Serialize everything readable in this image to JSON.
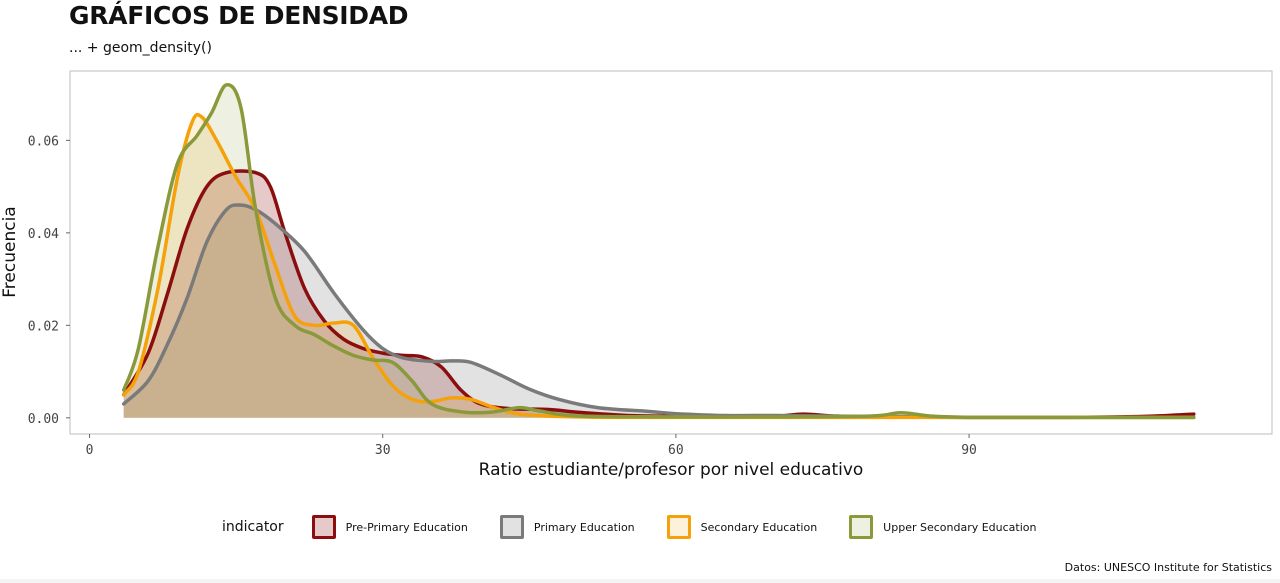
{
  "header": {
    "title": "GRÁFICOS DE DENSIDAD",
    "subtitle": "... + geom_density()"
  },
  "caption": "Datos: UNESCO Institute for Statistics",
  "legend": {
    "title": "indicator",
    "position": "bottom"
  },
  "chart_data": {
    "type": "area",
    "subtype": "density",
    "xlabel": "Ratio estudiante/profesor por nivel educativo",
    "ylabel": "Frecuencia",
    "xlim": [
      -2,
      121
    ],
    "ylim": [
      -0.0035,
      0.075
    ],
    "x_ticks": [
      0,
      30,
      60,
      90
    ],
    "x_tick_labels": [
      "0",
      "30",
      "60",
      "90"
    ],
    "y_ticks": [
      0.0,
      0.02,
      0.04,
      0.06
    ],
    "y_tick_labels": [
      "0.00",
      "0.02",
      "0.04",
      "0.06"
    ],
    "grid": false,
    "series": [
      {
        "name": "Pre-Primary Education",
        "color": "#8b0e0e",
        "fill_opacity": 0.22,
        "points": [
          [
            3.5,
            0.005
          ],
          [
            6,
            0.014
          ],
          [
            8,
            0.027
          ],
          [
            10,
            0.041
          ],
          [
            12,
            0.05
          ],
          [
            14,
            0.053
          ],
          [
            17,
            0.053
          ],
          [
            18.5,
            0.05
          ],
          [
            20,
            0.04
          ],
          [
            22,
            0.028
          ],
          [
            24,
            0.021
          ],
          [
            26,
            0.017
          ],
          [
            28,
            0.015
          ],
          [
            30,
            0.014
          ],
          [
            32,
            0.0135
          ],
          [
            34,
            0.0132
          ],
          [
            36,
            0.011
          ],
          [
            38,
            0.006
          ],
          [
            40,
            0.003
          ],
          [
            43,
            0.002
          ],
          [
            47,
            0.0018
          ],
          [
            50,
            0.0012
          ],
          [
            55,
            0.0005
          ],
          [
            60,
            0.0003
          ],
          [
            65,
            0.0002
          ],
          [
            70,
            0.0003
          ],
          [
            73,
            0.0008
          ],
          [
            76,
            0.0004
          ],
          [
            80,
            0.0002
          ],
          [
            90,
            0.0001
          ],
          [
            100,
            0.0001
          ],
          [
            108,
            0.0003
          ],
          [
            113,
            0.0008
          ]
        ]
      },
      {
        "name": "Primary Education",
        "color": "#7a7a7a",
        "fill_opacity": 0.22,
        "points": [
          [
            3.5,
            0.003
          ],
          [
            6,
            0.008
          ],
          [
            8,
            0.016
          ],
          [
            10,
            0.026
          ],
          [
            12,
            0.038
          ],
          [
            14,
            0.045
          ],
          [
            15.5,
            0.046
          ],
          [
            17,
            0.045
          ],
          [
            19,
            0.042
          ],
          [
            22,
            0.036
          ],
          [
            25,
            0.027
          ],
          [
            28,
            0.019
          ],
          [
            30,
            0.015
          ],
          [
            32,
            0.013
          ],
          [
            35,
            0.0122
          ],
          [
            37,
            0.0123
          ],
          [
            39,
            0.012
          ],
          [
            42,
            0.0093
          ],
          [
            45,
            0.0062
          ],
          [
            48,
            0.004
          ],
          [
            52,
            0.0022
          ],
          [
            57,
            0.0014
          ],
          [
            60,
            0.0009
          ],
          [
            65,
            0.0005
          ],
          [
            70,
            0.0005
          ],
          [
            75,
            0.0004
          ],
          [
            80,
            0.0003
          ],
          [
            85,
            0.0002
          ],
          [
            90,
            0.0001
          ],
          [
            100,
            0.0001
          ],
          [
            113,
            0.0001
          ]
        ]
      },
      {
        "name": "Secondary Education",
        "color": "#f5a10a",
        "fill_opacity": 0.15,
        "points": [
          [
            3.5,
            0.005
          ],
          [
            5,
            0.01
          ],
          [
            7,
            0.028
          ],
          [
            9,
            0.052
          ],
          [
            10.5,
            0.064
          ],
          [
            11.5,
            0.065
          ],
          [
            13,
            0.06
          ],
          [
            15,
            0.052
          ],
          [
            17,
            0.045
          ],
          [
            19,
            0.033
          ],
          [
            21,
            0.022
          ],
          [
            23,
            0.02
          ],
          [
            25,
            0.0205
          ],
          [
            27,
            0.02
          ],
          [
            29,
            0.013
          ],
          [
            31,
            0.007
          ],
          [
            33,
            0.004
          ],
          [
            35,
            0.0035
          ],
          [
            37,
            0.0043
          ],
          [
            39,
            0.004
          ],
          [
            41,
            0.0025
          ],
          [
            43,
            0.0012
          ],
          [
            45,
            0.0006
          ],
          [
            50,
            0.0002
          ],
          [
            60,
            0.0001
          ],
          [
            113,
            0.0001
          ]
        ]
      },
      {
        "name": "Upper Secondary Education",
        "color": "#8a9a3b",
        "fill_opacity": 0.15,
        "points": [
          [
            3.5,
            0.006
          ],
          [
            5,
            0.015
          ],
          [
            7,
            0.037
          ],
          [
            9,
            0.055
          ],
          [
            11,
            0.061
          ],
          [
            12.5,
            0.066
          ],
          [
            14,
            0.072
          ],
          [
            15.5,
            0.067
          ],
          [
            17,
            0.045
          ],
          [
            19,
            0.026
          ],
          [
            21,
            0.02
          ],
          [
            23,
            0.018
          ],
          [
            25,
            0.0155
          ],
          [
            27,
            0.0135
          ],
          [
            29,
            0.0125
          ],
          [
            31,
            0.012
          ],
          [
            33,
            0.008
          ],
          [
            35,
            0.003
          ],
          [
            38,
            0.0013
          ],
          [
            41,
            0.0012
          ],
          [
            44,
            0.0022
          ],
          [
            46,
            0.0015
          ],
          [
            50,
            0.0004
          ],
          [
            60,
            0.0002
          ],
          [
            70,
            0.0002
          ],
          [
            80,
            0.0004
          ],
          [
            83,
            0.0011
          ],
          [
            86,
            0.0004
          ],
          [
            90,
            0.0001
          ],
          [
            100,
            0.0001
          ],
          [
            113,
            0.0001
          ]
        ]
      }
    ]
  }
}
